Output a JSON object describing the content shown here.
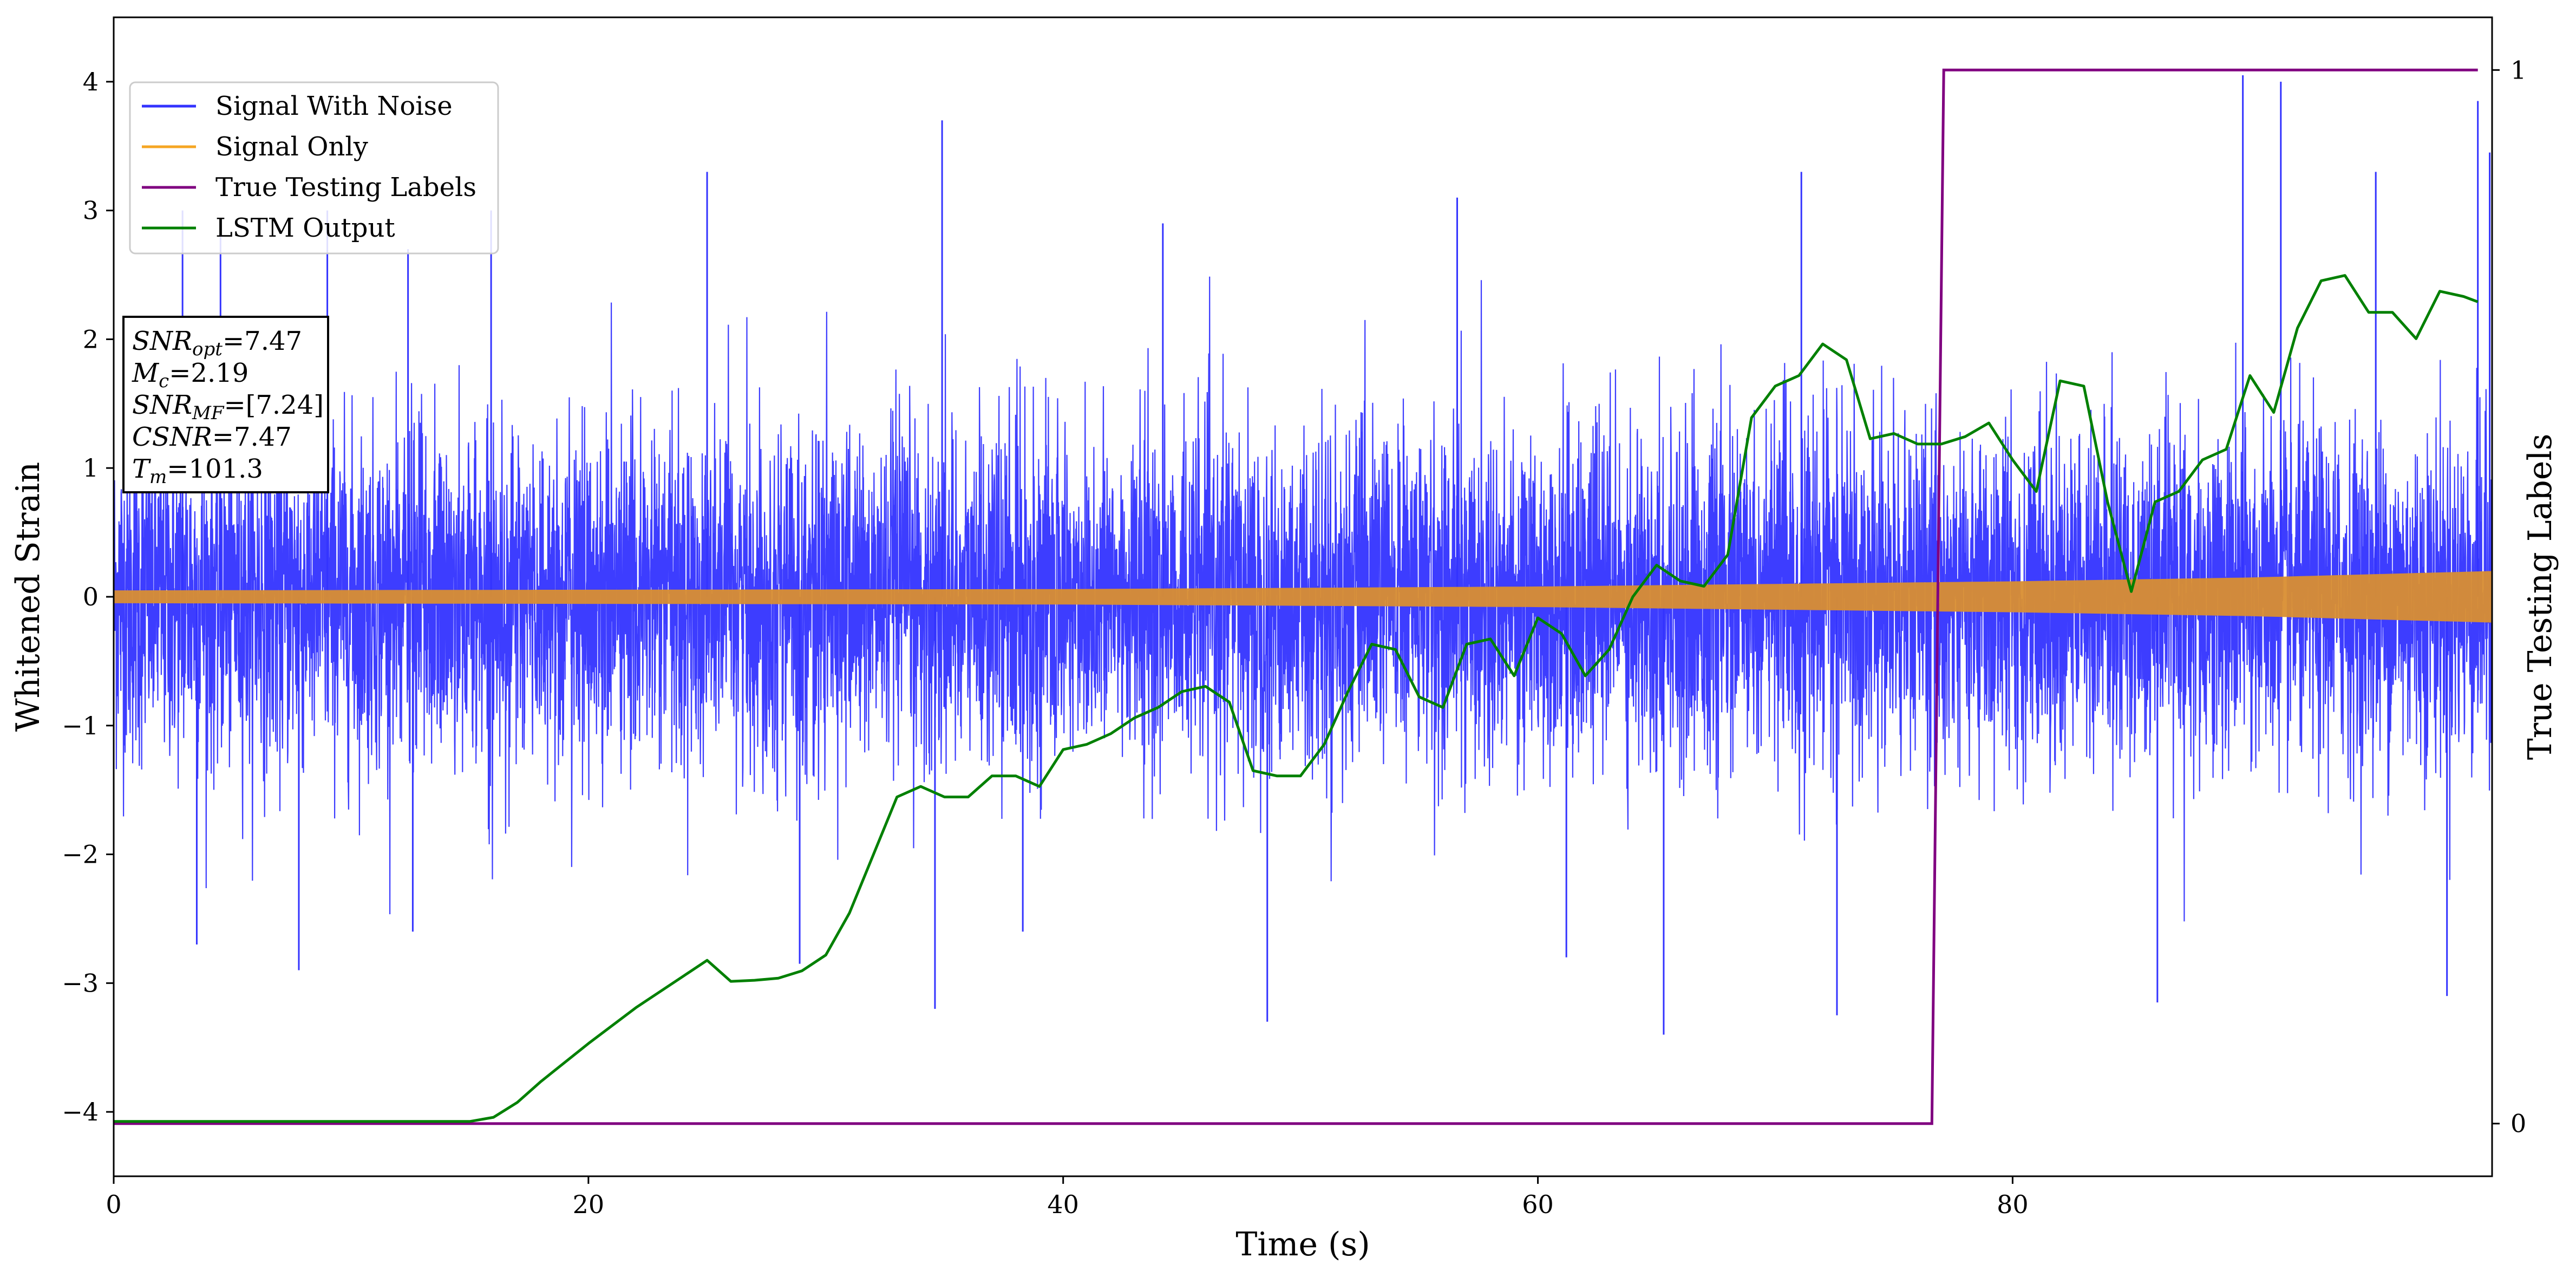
{
  "chart_data": {
    "type": "line",
    "xlabel": "Time (s)",
    "ylabel": "Whitened Strain",
    "ylabel_right": "True Testing Labels",
    "xlim": [
      0,
      100.2
    ],
    "ylim": [
      -4.5,
      4.5
    ],
    "ylim_right": [
      -0.05,
      1.05
    ],
    "x_ticks": [
      0,
      20,
      40,
      60,
      80
    ],
    "y_ticks": [
      -4,
      -3,
      -2,
      -1,
      0,
      1,
      2,
      3,
      4
    ],
    "y_ticks_right": [
      0,
      1
    ],
    "legend_position": "upper-left",
    "grid": false,
    "series": [
      {
        "name": "Signal With Noise",
        "axis": "left",
        "color": "#3333ff",
        "description_values": {
          "noise_sigma": 0.65,
          "peaks": [
            [
              2.9,
              3.0
            ],
            [
              4.5,
              2.9
            ],
            [
              9.0,
              3.0
            ],
            [
              12.4,
              2.7
            ],
            [
              15.9,
              3.0
            ],
            [
              25.0,
              3.3
            ],
            [
              34.9,
              3.7
            ],
            [
              44.2,
              2.9
            ],
            [
              56.6,
              3.1
            ],
            [
              71.1,
              3.3
            ],
            [
              89.7,
              4.05
            ],
            [
              91.3,
              4.0
            ],
            [
              95.3,
              3.3
            ],
            [
              99.6,
              3.85
            ],
            [
              100.1,
              3.45
            ]
          ],
          "troughs": [
            [
              3.5,
              -2.7
            ],
            [
              7.8,
              -2.9
            ],
            [
              12.6,
              -2.6
            ],
            [
              28.9,
              -2.85
            ],
            [
              34.6,
              -3.2
            ],
            [
              38.3,
              -2.6
            ],
            [
              48.6,
              -3.3
            ],
            [
              61.2,
              -2.8
            ],
            [
              65.3,
              -3.4
            ],
            [
              72.6,
              -3.25
            ],
            [
              86.1,
              -3.15
            ],
            [
              98.3,
              -3.1
            ]
          ]
        }
      },
      {
        "name": "Signal Only",
        "axis": "left",
        "color": "#f5a623",
        "band_half_width": [
          [
            0,
            0.05
          ],
          [
            20,
            0.055
          ],
          [
            40,
            0.06
          ],
          [
            60,
            0.08
          ],
          [
            80,
            0.12
          ],
          [
            90,
            0.15
          ],
          [
            100.2,
            0.2
          ]
        ]
      },
      {
        "name": "True Testing Labels",
        "axis": "right",
        "color": "#800080",
        "x": [
          0,
          76.6,
          77.1,
          99.6
        ],
        "values": [
          0,
          0,
          1,
          1
        ]
      },
      {
        "name": "LSTM Output",
        "axis": "right",
        "color": "#008000",
        "x": [
          0,
          10,
          15,
          16,
          17,
          18,
          20,
          22,
          24,
          25,
          26,
          27,
          28,
          29,
          30,
          31,
          32,
          33,
          34,
          35,
          36,
          37,
          38,
          39,
          40,
          41,
          42,
          43,
          44,
          45,
          46,
          47,
          48,
          49,
          50,
          51,
          52,
          53,
          54,
          55,
          56,
          57,
          58,
          59,
          60,
          61,
          62,
          63,
          64,
          65,
          66,
          67,
          68,
          69,
          70,
          71,
          72,
          73,
          74,
          75,
          76,
          77,
          78,
          79,
          80,
          81,
          82,
          83,
          84,
          85,
          86,
          87,
          88,
          89,
          90,
          91,
          92,
          93,
          94,
          95,
          96,
          97,
          98,
          99,
          99.6
        ],
        "values": [
          0.002,
          0.002,
          0.002,
          0.006,
          0.02,
          0.04,
          0.076,
          0.11,
          0.14,
          0.155,
          0.135,
          0.136,
          0.138,
          0.145,
          0.16,
          0.2,
          0.255,
          0.31,
          0.32,
          0.31,
          0.31,
          0.33,
          0.33,
          0.32,
          0.355,
          0.36,
          0.37,
          0.385,
          0.395,
          0.41,
          0.415,
          0.4,
          0.335,
          0.33,
          0.33,
          0.36,
          0.41,
          0.455,
          0.45,
          0.405,
          0.395,
          0.455,
          0.46,
          0.425,
          0.48,
          0.465,
          0.425,
          0.45,
          0.5,
          0.53,
          0.515,
          0.51,
          0.54,
          0.67,
          0.7,
          0.71,
          0.74,
          0.725,
          0.65,
          0.655,
          0.645,
          0.645,
          0.652,
          0.665,
          0.63,
          0.6,
          0.705,
          0.7,
          0.59,
          0.505,
          0.59,
          0.6,
          0.63,
          0.64,
          0.71,
          0.675,
          0.755,
          0.8,
          0.805,
          0.77,
          0.77,
          0.745,
          0.79,
          0.785,
          0.78
        ]
      }
    ]
  },
  "legend": {
    "items": [
      {
        "label": "Signal With Noise",
        "color": "#3333ff"
      },
      {
        "label": "Signal Only",
        "color": "#f5a623"
      },
      {
        "label": "True Testing Labels",
        "color": "#800080"
      },
      {
        "label": "LSTM Output",
        "color": "#008000"
      }
    ]
  },
  "annotation": {
    "snr_opt_label": "SNR",
    "snr_opt_sub": "opt",
    "snr_opt_value": "=7.47",
    "mc_label": "M",
    "mc_sub": "c",
    "mc_value": "=2.19",
    "snr_mf_label": "SNR",
    "snr_mf_sub": "MF",
    "snr_mf_value": "=[7.24]",
    "csnr_label": "CSNR",
    "csnr_value": "=7.47",
    "tm_label": "T",
    "tm_sub": "m",
    "tm_value": "=101.3"
  }
}
